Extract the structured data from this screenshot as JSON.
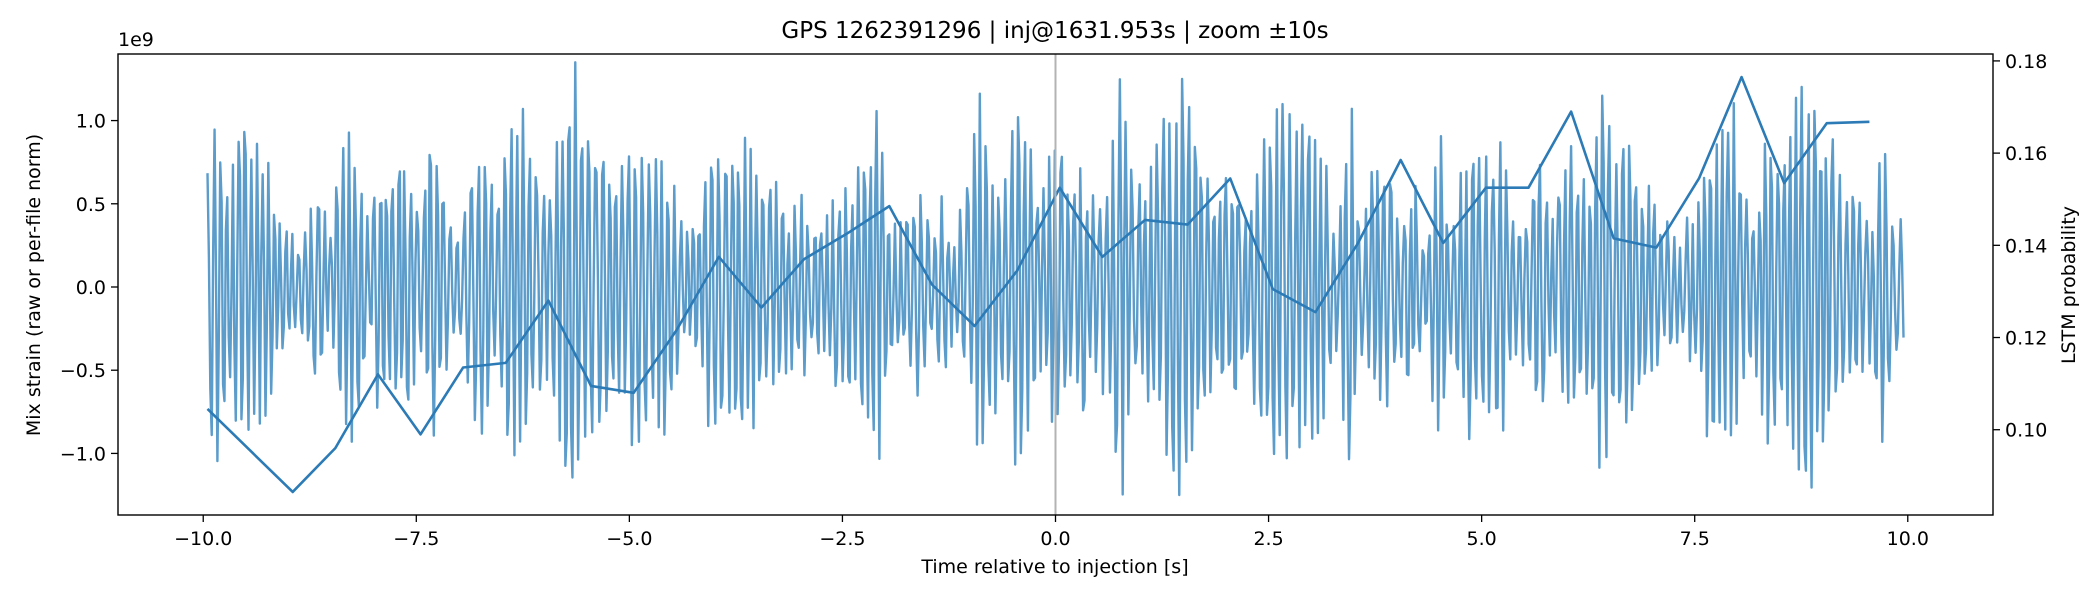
{
  "chart_data": {
    "type": "line",
    "title": "GPS 1262391296 | inj@1631.953s | zoom ±10s",
    "xlabel": "Time relative to injection [s]",
    "ylabel": "Mix strain (raw or per-file norm)",
    "y2label": "LSTM probability",
    "y_offset_label": "1e9",
    "xlim": [
      -11.0,
      11.0
    ],
    "ylim": [
      -1.37,
      1.4
    ],
    "y2lim": [
      0.0815,
      0.1815
    ],
    "x_ticks": [
      -10.0,
      -7.5,
      -5.0,
      -2.5,
      0.0,
      2.5,
      5.0,
      7.5,
      10.0
    ],
    "x_tick_labels": [
      "−10.0",
      "−7.5",
      "−5.0",
      "−2.5",
      "0.0",
      "2.5",
      "5.0",
      "7.5",
      "10.0"
    ],
    "y_ticks": [
      -1.0,
      -0.5,
      0.0,
      0.5,
      1.0
    ],
    "y_tick_labels": [
      "−1.0",
      "−0.5",
      "0.0",
      "0.5",
      "1.0"
    ],
    "y2_ticks": [
      0.1,
      0.12,
      0.14,
      0.16,
      0.18
    ],
    "y2_tick_labels": [
      "0.10",
      "0.12",
      "0.14",
      "0.16",
      "0.18"
    ],
    "vline_x": 0.0,
    "colors": {
      "strain": "#5b9ccb",
      "prob": "#2c7bb6",
      "vline": "#b3b3b3",
      "axes": "#000000"
    },
    "series": [
      {
        "name": "LSTM probability",
        "axis": "right",
        "x": [
          -9.95,
          -8.95,
          -8.45,
          -7.95,
          -7.45,
          -6.95,
          -6.45,
          -5.95,
          -5.45,
          -4.95,
          -4.45,
          -3.95,
          -3.45,
          -2.95,
          -2.45,
          -1.95,
          -1.45,
          -0.95,
          -0.45,
          0.05,
          0.55,
          1.05,
          1.55,
          2.05,
          2.55,
          3.05,
          3.55,
          4.05,
          4.55,
          5.05,
          5.55,
          6.05,
          6.55,
          7.05,
          7.55,
          8.05,
          8.55,
          9.05,
          9.55
        ],
        "values": [
          0.1045,
          0.0865,
          0.096,
          0.112,
          0.099,
          0.1135,
          0.1145,
          0.128,
          0.1095,
          0.108,
          0.1215,
          0.1375,
          0.1265,
          0.137,
          0.1425,
          0.1485,
          0.1315,
          0.1225,
          0.1345,
          0.1525,
          0.1375,
          0.1455,
          0.1445,
          0.1545,
          0.1305,
          0.1255,
          0.1405,
          0.1585,
          0.1405,
          0.1525,
          0.1525,
          0.169,
          0.1415,
          0.1395,
          0.1545,
          0.1765,
          0.1535,
          0.1665,
          0.1668
        ]
      },
      {
        "name": "Mix strain",
        "axis": "left",
        "x_start": -9.95,
        "x_end": 9.95,
        "n_points": 1200,
        "amplitude_range": [
          -1.25,
          1.35
        ]
      }
    ]
  }
}
